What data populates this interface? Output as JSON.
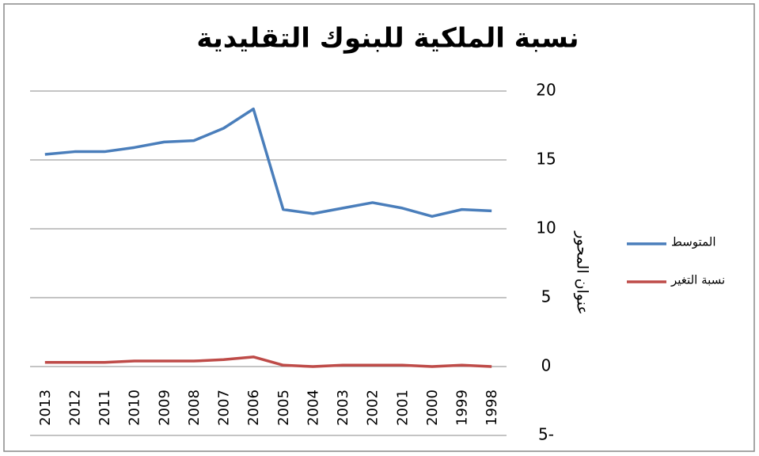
{
  "chart_data": {
    "type": "line",
    "title": "نسبة الملكية للبنوك التقليدية",
    "y_axis_label": "عنوان المحور",
    "categories": [
      "2013",
      "2012",
      "2011",
      "2010",
      "2009",
      "2008",
      "2007",
      "2006",
      "2005",
      "2004",
      "2003",
      "2002",
      "2001",
      "2000",
      "1999",
      "1998"
    ],
    "series": [
      {
        "name": "المتوسط",
        "color": "#4a7ebb",
        "values": [
          15.4,
          15.6,
          15.6,
          15.9,
          16.3,
          16.4,
          17.3,
          18.7,
          11.4,
          11.1,
          11.5,
          11.9,
          11.5,
          10.9,
          11.4,
          11.3
        ]
      },
      {
        "name": "نسبة التغير",
        "color": "#be4b48",
        "values": [
          0.3,
          0.3,
          0.3,
          0.4,
          0.4,
          0.4,
          0.5,
          0.7,
          0.1,
          0,
          0.1,
          0.1,
          0.1,
          0,
          0.1,
          0
        ]
      }
    ],
    "ylim": [
      -5,
      20
    ],
    "yticks": [
      {
        "value": -5,
        "label": "5-"
      },
      0,
      5,
      10,
      15,
      20
    ],
    "grid": true,
    "legend": "right"
  }
}
